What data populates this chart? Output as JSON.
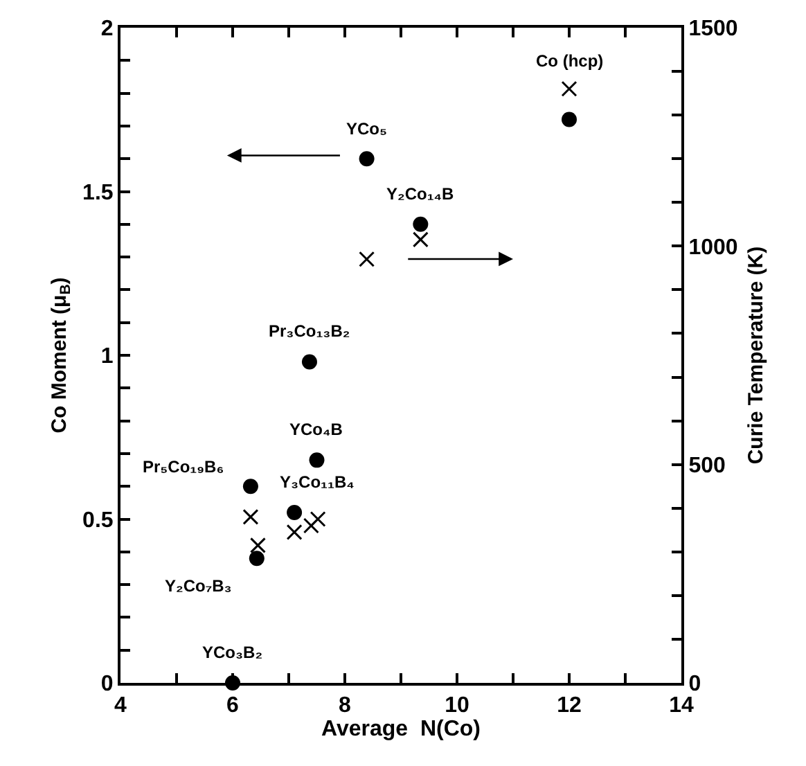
{
  "chart_data": {
    "type": "scatter",
    "xlabel": "Average  N(Co)",
    "ylabel": "Co Moment (μ$_{B}$)",
    "y2label": "Curie Temperature (K)",
    "series": [
      {
        "color": "#000000",
        "marker": "circle",
        "x": [
          6.0,
          6.43,
          6.32,
          7.1,
          7.5,
          7.37,
          8.39,
          9.35,
          12.0
        ],
        "values": [
          0,
          0.38,
          0.6,
          0.52,
          0.68,
          0.98,
          1.6,
          1.4,
          1.72
        ]
      },
      {
        "color": "#000000",
        "marker": "cross",
        "axis": "y2",
        "x": [
          12.0,
          9.35,
          8.39,
          6.32,
          6.45,
          7.1,
          7.4,
          7.52
        ],
        "values": [
          1360,
          1015,
          970,
          380,
          315,
          345,
          360,
          375
        ]
      }
    ],
    "annotations": [
      {
        "text": "Co (hcp)",
        "x": 12.0,
        "y": 1.72
      },
      {
        "text": "YCo₅",
        "x": 8.39,
        "y": 1.6
      },
      {
        "text": "Y₂Co₁₄B",
        "x": 9.35,
        "y": 1.4
      },
      {
        "text": "Pr₃Co₁₃B₂",
        "x": 7.37,
        "y": 0.98
      },
      {
        "text": "YCo₄B",
        "x": 7.5,
        "y": 0.68
      },
      {
        "text": "Pr₅Co₁₉B₆",
        "x": 6.32,
        "y": 0.6
      },
      {
        "text": "Y₃Co₁₁B₄",
        "x": 7.1,
        "y": 0.52
      },
      {
        "text": "Y₂Co₇B₃",
        "x": 6.43,
        "y": 0.38
      },
      {
        "text": "YCo₃B₂",
        "x": 6.0,
        "y": 0
      }
    ],
    "xlim": [
      4,
      14
    ],
    "xticks": [
      4,
      {
        "value": 5,
        "label": null
      },
      6,
      {
        "value": 7,
        "label": null
      },
      8,
      {
        "value": 9,
        "label": null
      },
      10,
      {
        "value": 11,
        "label": null
      },
      12,
      {
        "value": 13,
        "label": null
      },
      14
    ],
    "ylim": [
      0,
      2
    ],
    "yticks": [
      0,
      {
        "value": 0.1,
        "label": null
      },
      {
        "value": 0.2,
        "label": null
      },
      {
        "value": 0.3,
        "label": null
      },
      {
        "value": 0.4,
        "label": null
      },
      0.5,
      {
        "value": 0.6,
        "label": null
      },
      {
        "value": 0.7,
        "label": null
      },
      {
        "value": 0.8,
        "label": null
      },
      {
        "value": 0.9,
        "label": null
      },
      1,
      {
        "value": 1.1,
        "label": null
      },
      {
        "value": 1.2,
        "label": null
      },
      {
        "value": 1.3,
        "label": null
      },
      {
        "value": 1.4,
        "label": null
      },
      1.5,
      {
        "value": 1.6,
        "label": null
      },
      {
        "value": 1.7,
        "label": null
      },
      {
        "value": 1.8,
        "label": null
      },
      {
        "value": 1.9,
        "label": null
      },
      2
    ],
    "y2lim": [
      0,
      1500
    ],
    "y2ticks": [
      0,
      {
        "value": 100,
        "label": null
      },
      {
        "value": 200,
        "label": null
      },
      {
        "value": 300,
        "label": null
      },
      {
        "value": 400,
        "label": null
      },
      500,
      {
        "value": 600,
        "label": null
      },
      {
        "value": 700,
        "label": null
      },
      {
        "value": 800,
        "label": null
      },
      {
        "value": 900,
        "label": null
      },
      1000,
      {
        "value": 1100,
        "label": null
      },
      {
        "value": 1200,
        "label": null
      },
      {
        "value": 1300,
        "label": null
      },
      {
        "value": 1400,
        "label": null
      },
      1500
    ],
    "legend": false
  }
}
